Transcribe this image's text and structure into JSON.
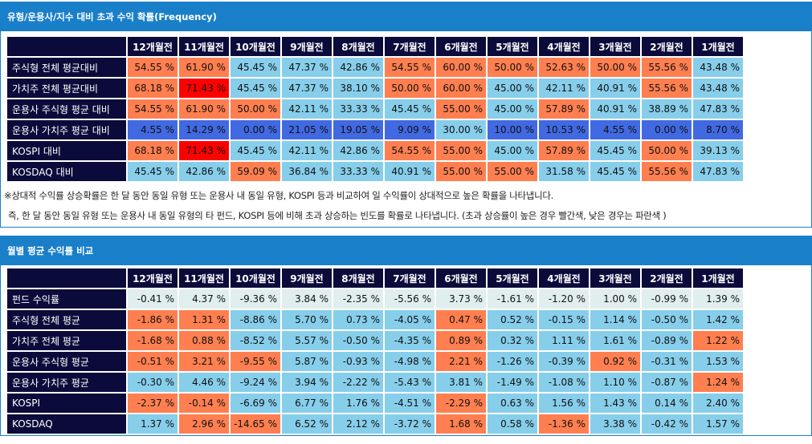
{
  "colors": {
    "high": "#ff7f50",
    "very_high": "#ff0000",
    "low": "#87ceeb",
    "very_low": "#4169e1",
    "neutral": "#e0eeee",
    "header": "#0b0b3b",
    "accent": "#1a7fc9"
  },
  "columns": [
    "12개월전",
    "11개월전",
    "10개월전",
    "9개월전",
    "8개월전",
    "7개월전",
    "6개월전",
    "5개월전",
    "4개월전",
    "3개월전",
    "2개월전",
    "1개월전"
  ],
  "freq": {
    "title": "유형/운용사/지수 대비 초과 수익 확률(Frequency)",
    "rows": [
      {
        "label": "주식형 전체 평균대비",
        "values": [
          "54.55 %",
          "61.90 %",
          "45.45 %",
          "47.37 %",
          "42.86 %",
          "54.55 %",
          "60.00 %",
          "50.00 %",
          "52.63 %",
          "50.00 %",
          "55.56 %",
          "43.48 %"
        ],
        "colors": [
          "o",
          "o",
          "b",
          "b",
          "b",
          "o",
          "o",
          "o",
          "o",
          "o",
          "o",
          "b"
        ]
      },
      {
        "label": "가치주 전체 평균대비",
        "values": [
          "68.18 %",
          "71.43 %",
          "45.45 %",
          "47.37 %",
          "38.10 %",
          "50.00 %",
          "60.00 %",
          "45.00 %",
          "42.11 %",
          "40.91 %",
          "55.56 %",
          "43.48 %"
        ],
        "colors": [
          "o",
          "r",
          "b",
          "b",
          "b",
          "o",
          "o",
          "b",
          "b",
          "b",
          "o",
          "b"
        ]
      },
      {
        "label": "운용사 주식형 평균 대비",
        "values": [
          "54.55 %",
          "61.90 %",
          "50.00 %",
          "42.11 %",
          "33.33 %",
          "45.45 %",
          "55.00 %",
          "45.00 %",
          "57.89 %",
          "40.91 %",
          "38.89 %",
          "47.83 %"
        ],
        "colors": [
          "o",
          "o",
          "o",
          "b",
          "b",
          "b",
          "o",
          "b",
          "o",
          "b",
          "b",
          "b"
        ]
      },
      {
        "label": "운용사 가치주 평균 대비",
        "values": [
          "4.55 %",
          "14.29 %",
          "0.00 %",
          "21.05 %",
          "19.05 %",
          "9.09 %",
          "30.00 %",
          "10.00 %",
          "10.53 %",
          "4.55 %",
          "0.00 %",
          "8.70 %"
        ],
        "colors": [
          "d",
          "d",
          "d",
          "d",
          "d",
          "d",
          "b",
          "d",
          "d",
          "d",
          "d",
          "d"
        ]
      },
      {
        "label": "KOSPI 대비",
        "values": [
          "68.18 %",
          "71.43 %",
          "45.45 %",
          "42.11 %",
          "42.86 %",
          "54.55 %",
          "55.00 %",
          "45.00 %",
          "57.89 %",
          "45.45 %",
          "50.00 %",
          "39.13 %"
        ],
        "colors": [
          "o",
          "r",
          "b",
          "b",
          "b",
          "o",
          "o",
          "b",
          "o",
          "b",
          "o",
          "b"
        ]
      },
      {
        "label": "KOSDAQ 대비",
        "values": [
          "45.45 %",
          "42.86 %",
          "59.09 %",
          "36.84 %",
          "33.33 %",
          "40.91 %",
          "55.00 %",
          "55.00 %",
          "31.58 %",
          "45.45 %",
          "55.56 %",
          "47.83 %"
        ],
        "colors": [
          "b",
          "b",
          "o",
          "b",
          "b",
          "b",
          "o",
          "o",
          "b",
          "b",
          "o",
          "b"
        ]
      }
    ],
    "note1": "※상대적 수익률 상승확률은 한 달 동안 동일 유형 또는 운용사 내 동일 유형, KOSPI 등과 비교하여 일 수익률이 상대적으로 높은 확률을 나타냅니다.",
    "note2": "즉, 한 달 동안 동일 유형 또는 운용사 내 동일 유형의 타 펀드, KOSPI 등에 비해 초과 상승하는 빈도를 확률로 나타냅니다. (초과 상승률이 높은 경우 빨간색, 낮은 경우는 파란색 )"
  },
  "monthly": {
    "title": "월별 평균 수익률 비교",
    "rows": [
      {
        "label": "펀드 수익률",
        "values": [
          "-0.41 %",
          "4.37 %",
          "-9.36 %",
          "3.84 %",
          "-2.35 %",
          "-5.56 %",
          "3.73 %",
          "-1.61 %",
          "-1.20 %",
          "1.00 %",
          "-0.99 %",
          "1.39 %"
        ],
        "colors": [
          "n",
          "n",
          "n",
          "n",
          "n",
          "n",
          "n",
          "n",
          "n",
          "n",
          "n",
          "n"
        ]
      },
      {
        "label": "주식형 전체 평균",
        "values": [
          "-1.86 %",
          "1.31 %",
          "-8.86 %",
          "5.70 %",
          "0.73 %",
          "-4.05 %",
          "0.47 %",
          "0.52 %",
          "-0.15 %",
          "1.14 %",
          "-0.50 %",
          "1.42 %"
        ],
        "colors": [
          "o",
          "o",
          "b",
          "b",
          "b",
          "b",
          "o",
          "b",
          "b",
          "b",
          "b",
          "b"
        ]
      },
      {
        "label": "가치주 전체 평균",
        "values": [
          "-1.68 %",
          "0.88 %",
          "-8.52 %",
          "5.57 %",
          "-0.50 %",
          "-4.35 %",
          "0.89 %",
          "0.32 %",
          "1.11 %",
          "1.61 %",
          "-0.89 %",
          "1.22 %"
        ],
        "colors": [
          "o",
          "o",
          "b",
          "b",
          "b",
          "b",
          "o",
          "b",
          "b",
          "b",
          "b",
          "o"
        ]
      },
      {
        "label": "운용사 주식형 평균",
        "values": [
          "-0.51 %",
          "3.21 %",
          "-9.55 %",
          "5.87 %",
          "-0.93 %",
          "-4.98 %",
          "2.21 %",
          "-1.26 %",
          "-0.39 %",
          "0.92 %",
          "-0.31 %",
          "1.53 %"
        ],
        "colors": [
          "o",
          "o",
          "o",
          "b",
          "b",
          "b",
          "o",
          "b",
          "b",
          "o",
          "b",
          "b"
        ]
      },
      {
        "label": "운용사 가치주 평균",
        "values": [
          "-0.30 %",
          "4.46 %",
          "-9.24 %",
          "3.94 %",
          "-2.22 %",
          "-5.43 %",
          "3.81 %",
          "-1.49 %",
          "-1.08 %",
          "1.10 %",
          "-0.87 %",
          "1.24 %"
        ],
        "colors": [
          "b",
          "b",
          "b",
          "b",
          "b",
          "b",
          "b",
          "b",
          "b",
          "b",
          "b",
          "o"
        ]
      },
      {
        "label": "KOSPI",
        "values": [
          "-2.37 %",
          "-0.14 %",
          "-6.69 %",
          "6.77 %",
          "1.76 %",
          "-4.51 %",
          "-2.29 %",
          "0.63 %",
          "1.56 %",
          "1.43 %",
          "0.14 %",
          "2.40 %"
        ],
        "colors": [
          "o",
          "o",
          "b",
          "b",
          "b",
          "b",
          "o",
          "b",
          "b",
          "b",
          "b",
          "b"
        ]
      },
      {
        "label": "KOSDAQ",
        "values": [
          "1.37 %",
          "2.96 %",
          "-14.65 %",
          "6.52 %",
          "2.12 %",
          "-3.72 %",
          "1.68 %",
          "0.58 %",
          "-1.36 %",
          "3.38 %",
          "-0.42 %",
          "1.57 %"
        ],
        "colors": [
          "b",
          "o",
          "o",
          "b",
          "b",
          "b",
          "o",
          "b",
          "o",
          "b",
          "b",
          "b"
        ]
      }
    ]
  }
}
